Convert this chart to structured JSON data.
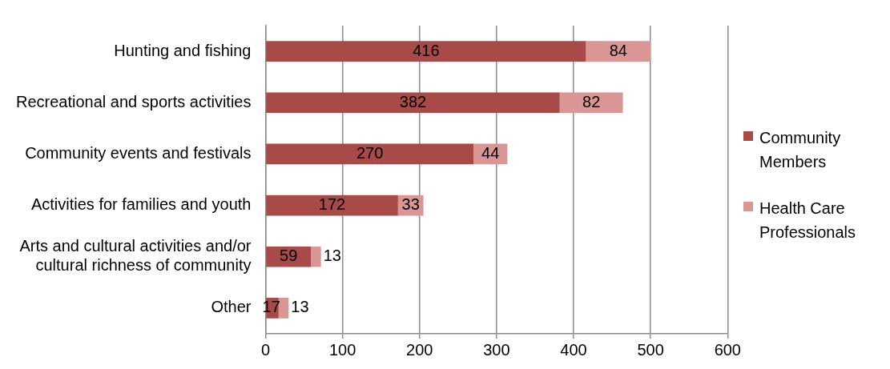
{
  "chart_data": {
    "type": "bar",
    "orientation": "horizontal",
    "stacked": true,
    "categories": [
      "Hunting and fishing",
      "Recreational and sports activities",
      "Community events and festivals",
      "Activities for families and youth",
      "Arts and cultural activities and/or cultural richness of community",
      "Other"
    ],
    "series": [
      {
        "name": "Community Members",
        "color": "#a84a48",
        "values": [
          416,
          382,
          270,
          172,
          59,
          17
        ]
      },
      {
        "name": "Health Care Professionals",
        "color": "#d99694",
        "values": [
          84,
          82,
          44,
          33,
          13,
          13
        ]
      }
    ],
    "xlim": [
      0,
      600
    ],
    "xticks": [
      0,
      100,
      200,
      300,
      400,
      500,
      600
    ],
    "grid": "x",
    "legend": "right",
    "data_labels": true
  }
}
